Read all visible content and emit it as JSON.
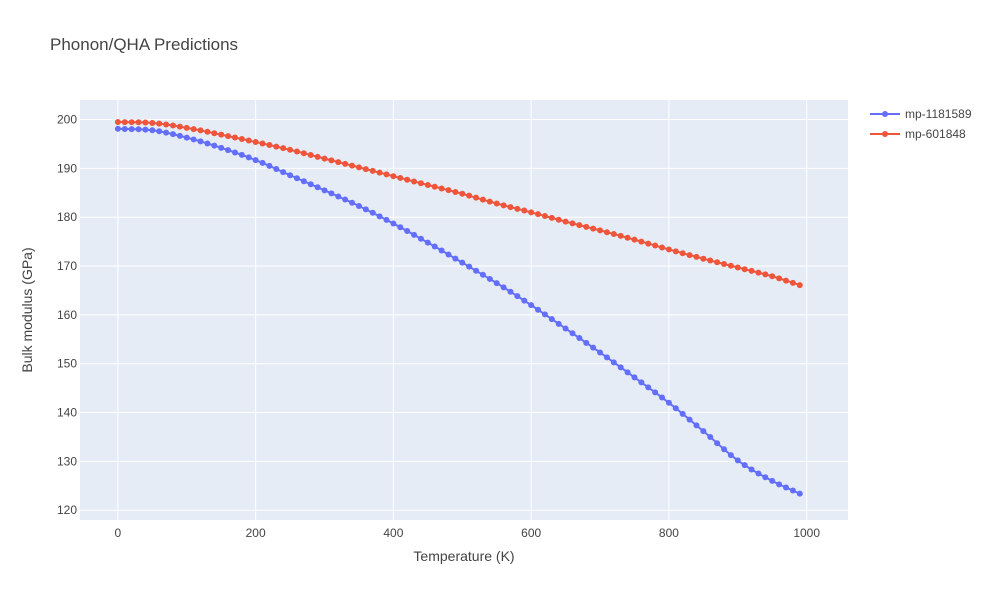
{
  "chart_data": {
    "type": "line",
    "title": "Phonon/QHA Predictions",
    "xlabel": "Temperature (K)",
    "ylabel": "Bulk modulus (GPa)",
    "xlim": [
      -55,
      1060
    ],
    "ylim": [
      118,
      204
    ],
    "x_ticks": [
      0,
      200,
      400,
      600,
      800,
      1000
    ],
    "y_ticks": [
      120,
      130,
      140,
      150,
      160,
      170,
      180,
      190,
      200
    ],
    "x_tick_labels": [
      "0",
      "200",
      "400",
      "600",
      "800",
      "1000"
    ],
    "y_tick_labels": [
      "120",
      "130",
      "140",
      "150",
      "160",
      "170",
      "180",
      "190",
      "200"
    ],
    "grid": true,
    "legend_position": "top-right, outside plot area",
    "background_color": "#E5ECF6",
    "x_sampling": {
      "start": 0,
      "step": 10,
      "count": 100
    },
    "series": [
      {
        "name": "mp-1181589",
        "color": "#636EFA",
        "anchors_x": [
          0,
          50,
          100,
          150,
          200,
          250,
          300,
          350,
          400,
          450,
          500,
          550,
          600,
          650,
          700,
          750,
          800,
          850,
          900,
          950,
          990
        ],
        "anchors_y": [
          198.1,
          197.8,
          196.3,
          194.2,
          191.7,
          188.6,
          185.5,
          182.3,
          178.7,
          174.8,
          170.7,
          166.5,
          162.0,
          157.2,
          152.3,
          147.2,
          142.0,
          136.2,
          130.2,
          126.0,
          123.4
        ]
      },
      {
        "name": "mp-601848",
        "color": "#EF553B",
        "anchors_x": [
          0,
          50,
          100,
          150,
          200,
          250,
          300,
          350,
          400,
          450,
          500,
          550,
          600,
          650,
          700,
          750,
          800,
          850,
          900,
          950,
          990
        ],
        "anchors_y": [
          199.5,
          199.3,
          198.3,
          196.9,
          195.4,
          193.8,
          192.0,
          190.2,
          188.4,
          186.6,
          184.8,
          182.8,
          181.0,
          179.1,
          177.3,
          175.4,
          173.4,
          171.5,
          169.7,
          167.9,
          166.1
        ]
      }
    ]
  }
}
